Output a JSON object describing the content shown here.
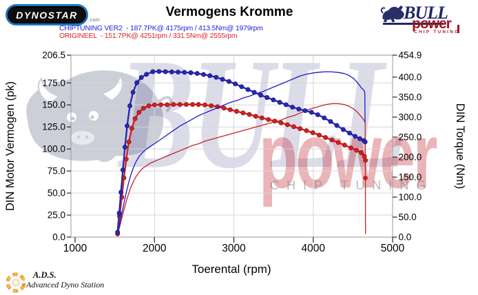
{
  "app": {
    "title": "Vermogens Kromme"
  },
  "logos": {
    "dynostar": {
      "text": "DYNOSTAR",
      "suffix": ".com"
    },
    "bullpower": {
      "name": "BULL",
      "sub": "power",
      "tagline": "CHIP TUNING"
    }
  },
  "legend": {
    "chiptuning": {
      "label": "CHIPTUNING VER2  - 187.7PK@ 4175rpm / 413.5Nm@ 1979rpm",
      "color": "#2222dd"
    },
    "origineel": {
      "label": "ORIGINEEL  - 151.7PK@ 4251rpm / 331.5Nm@ 2555rpm",
      "color": "#e02222"
    }
  },
  "watermarks": {
    "bull_text": "BULL",
    "power_text": "power",
    "tagline": "CHIP TUNING"
  },
  "footer": {
    "abbr": "A.D.S.",
    "name": "Advanced Dyno Station"
  },
  "colors": {
    "grid": "#d6d6d6",
    "border": "#9a9a9a",
    "tick": "#222222",
    "blue_thin": "#1a1ac8",
    "blue_thick": "#2929b4",
    "blue_marker_edge": "#12128c",
    "red_thin": "#c22424",
    "red_thick": "#d32020",
    "red_marker_edge": "#8f1414"
  },
  "chart_data": {
    "type": "line",
    "title": "Vermogens Kromme",
    "xlabel": "Toerental (rpm)",
    "ylabel_left": "DIN Motor Vermogen (pk)",
    "ylabel_right": "DIN Torque (Nm)",
    "grid": true,
    "x_range": [
      1000,
      5000
    ],
    "y_left_range": [
      0,
      206.5
    ],
    "y_right_range": [
      0,
      454.9
    ],
    "x_ticks": [
      1000,
      2000,
      3000,
      4000,
      5000
    ],
    "y_left_ticks": [
      0,
      25,
      50,
      75,
      100,
      125,
      150,
      175,
      206.5
    ],
    "y_right_ticks": [
      0,
      50,
      100,
      150,
      200,
      250,
      300,
      350,
      400,
      454.9
    ],
    "peaks": {
      "chiptuning": {
        "power_pk": 187.7,
        "power_rpm": 4175,
        "torque_nm": 413.5,
        "torque_rpm": 1979
      },
      "origineel": {
        "power_pk": 151.7,
        "power_rpm": 4251,
        "torque_nm": 331.5,
        "torque_rpm": 2555
      }
    },
    "series": [
      {
        "name": "vermogen-origineel",
        "axis": "left",
        "color": "#c22424",
        "width": 1.3,
        "markers": false,
        "extra_dots": [
          [
            4657,
            67
          ]
        ],
        "points": [
          [
            1535,
            3
          ],
          [
            1560,
            11
          ],
          [
            1585,
            20
          ],
          [
            1610,
            29
          ],
          [
            1640,
            39
          ],
          [
            1670,
            48
          ],
          [
            1700,
            56
          ],
          [
            1735,
            63
          ],
          [
            1770,
            69
          ],
          [
            1810,
            74
          ],
          [
            1850,
            78
          ],
          [
            1900,
            81
          ],
          [
            1950,
            84
          ],
          [
            2000,
            86
          ],
          [
            2080,
            89
          ],
          [
            2160,
            92
          ],
          [
            2240,
            95
          ],
          [
            2320,
            98
          ],
          [
            2400,
            101
          ],
          [
            2480,
            104
          ],
          [
            2560,
            106
          ],
          [
            2640,
            109
          ],
          [
            2720,
            111
          ],
          [
            2800,
            113
          ],
          [
            2880,
            115
          ],
          [
            2960,
            117
          ],
          [
            3040,
            119
          ],
          [
            3120,
            121
          ],
          [
            3200,
            123
          ],
          [
            3280,
            125
          ],
          [
            3360,
            127
          ],
          [
            3440,
            129
          ],
          [
            3520,
            131
          ],
          [
            3600,
            133
          ],
          [
            3680,
            136
          ],
          [
            3760,
            138
          ],
          [
            3840,
            141
          ],
          [
            3920,
            144
          ],
          [
            4000,
            146.5
          ],
          [
            4080,
            148.5
          ],
          [
            4160,
            150.5
          ],
          [
            4251,
            151.7
          ],
          [
            4320,
            151.4
          ],
          [
            4390,
            150.5
          ],
          [
            4450,
            148.5
          ],
          [
            4510,
            145.5
          ],
          [
            4560,
            141.5
          ],
          [
            4610,
            136
          ],
          [
            4645,
            132
          ],
          [
            4655,
            130
          ],
          [
            4657,
            67
          ],
          [
            4659,
            4
          ]
        ]
      },
      {
        "name": "koppel-origineel",
        "axis": "right",
        "color": "#d32020",
        "width": 2.4,
        "markers": true,
        "marker_edge": "#8f1414",
        "points": [
          [
            1535,
            8
          ],
          [
            1560,
            52
          ],
          [
            1588,
            100
          ],
          [
            1615,
            148
          ],
          [
            1645,
            195
          ],
          [
            1678,
            238
          ],
          [
            1715,
            272
          ],
          [
            1756,
            296
          ],
          [
            1805,
            312
          ],
          [
            1862,
            322
          ],
          [
            1928,
            328
          ],
          [
            2000,
            330.5
          ],
          [
            2080,
            331
          ],
          [
            2160,
            331
          ],
          [
            2240,
            331.5
          ],
          [
            2320,
            331.5
          ],
          [
            2400,
            331.5
          ],
          [
            2480,
            331.5
          ],
          [
            2555,
            331.5
          ],
          [
            2635,
            330.5
          ],
          [
            2715,
            328.5
          ],
          [
            2795,
            326
          ],
          [
            2875,
            322.5
          ],
          [
            2955,
            318.5
          ],
          [
            3035,
            314.5
          ],
          [
            3115,
            310.5
          ],
          [
            3195,
            306.5
          ],
          [
            3275,
            302
          ],
          [
            3355,
            298
          ],
          [
            3435,
            294
          ],
          [
            3515,
            290
          ],
          [
            3595,
            285.5
          ],
          [
            3675,
            281
          ],
          [
            3755,
            276
          ],
          [
            3835,
            271
          ],
          [
            3915,
            266
          ],
          [
            3995,
            261
          ],
          [
            4075,
            255
          ],
          [
            4155,
            249
          ],
          [
            4235,
            243
          ],
          [
            4315,
            236.5
          ],
          [
            4395,
            230
          ],
          [
            4475,
            223
          ],
          [
            4545,
            217
          ],
          [
            4605,
            211
          ],
          [
            4645,
            202
          ],
          [
            4658,
            192
          ]
        ]
      },
      {
        "name": "vermogen-chiptuning",
        "axis": "left",
        "color": "#1a1ac8",
        "width": 1.3,
        "markers": false,
        "points": [
          [
            1535,
            4
          ],
          [
            1560,
            14
          ],
          [
            1585,
            25
          ],
          [
            1610,
            36
          ],
          [
            1640,
            49
          ],
          [
            1670,
            60
          ],
          [
            1700,
            70
          ],
          [
            1735,
            79
          ],
          [
            1770,
            86
          ],
          [
            1810,
            92
          ],
          [
            1850,
            96
          ],
          [
            1900,
            100
          ],
          [
            1950,
            103
          ],
          [
            2000,
            106
          ],
          [
            2080,
            111
          ],
          [
            2160,
            116
          ],
          [
            2240,
            121
          ],
          [
            2320,
            126
          ],
          [
            2400,
            130
          ],
          [
            2480,
            134
          ],
          [
            2560,
            138
          ],
          [
            2640,
            141
          ],
          [
            2720,
            144
          ],
          [
            2800,
            147
          ],
          [
            2880,
            150
          ],
          [
            2960,
            153
          ],
          [
            3040,
            155
          ],
          [
            3120,
            158
          ],
          [
            3200,
            160
          ],
          [
            3280,
            163
          ],
          [
            3360,
            165
          ],
          [
            3440,
            168
          ],
          [
            3520,
            171
          ],
          [
            3600,
            174
          ],
          [
            3680,
            177
          ],
          [
            3760,
            180
          ],
          [
            3840,
            183
          ],
          [
            3920,
            185
          ],
          [
            4000,
            186.3
          ],
          [
            4080,
            187.2
          ],
          [
            4175,
            187.7
          ],
          [
            4250,
            187.4
          ],
          [
            4320,
            186.8
          ],
          [
            4390,
            185.6
          ],
          [
            4450,
            183.5
          ],
          [
            4510,
            180
          ],
          [
            4560,
            175
          ],
          [
            4610,
            169
          ],
          [
            4645,
            166
          ],
          [
            4650,
            163
          ],
          [
            4653,
            130
          ]
        ]
      },
      {
        "name": "koppel-chiptuning",
        "axis": "right",
        "color": "#2929b4",
        "width": 2.4,
        "markers": true,
        "marker_edge": "#12128c",
        "points": [
          [
            1535,
            12
          ],
          [
            1556,
            60
          ],
          [
            1578,
            112
          ],
          [
            1602,
            168
          ],
          [
            1628,
            225
          ],
          [
            1656,
            278
          ],
          [
            1690,
            328
          ],
          [
            1730,
            362
          ],
          [
            1778,
            386
          ],
          [
            1835,
            399
          ],
          [
            1900,
            407
          ],
          [
            1979,
            413.5
          ],
          [
            2058,
            414
          ],
          [
            2138,
            413.5
          ],
          [
            2218,
            413
          ],
          [
            2298,
            412.5
          ],
          [
            2378,
            412
          ],
          [
            2458,
            411
          ],
          [
            2538,
            409
          ],
          [
            2618,
            406.5
          ],
          [
            2698,
            403.5
          ],
          [
            2778,
            399.5
          ],
          [
            2858,
            394.5
          ],
          [
            2938,
            389
          ],
          [
            3018,
            383
          ],
          [
            3098,
            376
          ],
          [
            3178,
            369
          ],
          [
            3258,
            362
          ],
          [
            3338,
            355
          ],
          [
            3418,
            349
          ],
          [
            3498,
            343
          ],
          [
            3578,
            337
          ],
          [
            3658,
            331
          ],
          [
            3738,
            325
          ],
          [
            3818,
            320
          ],
          [
            3898,
            316
          ],
          [
            3978,
            312
          ],
          [
            4058,
            306
          ],
          [
            4138,
            298
          ],
          [
            4218,
            289
          ],
          [
            4298,
            279
          ],
          [
            4378,
            269
          ],
          [
            4458,
            260
          ],
          [
            4528,
            252
          ],
          [
            4588,
            246
          ],
          [
            4638,
            241
          ],
          [
            4655,
            238
          ]
        ]
      }
    ]
  }
}
